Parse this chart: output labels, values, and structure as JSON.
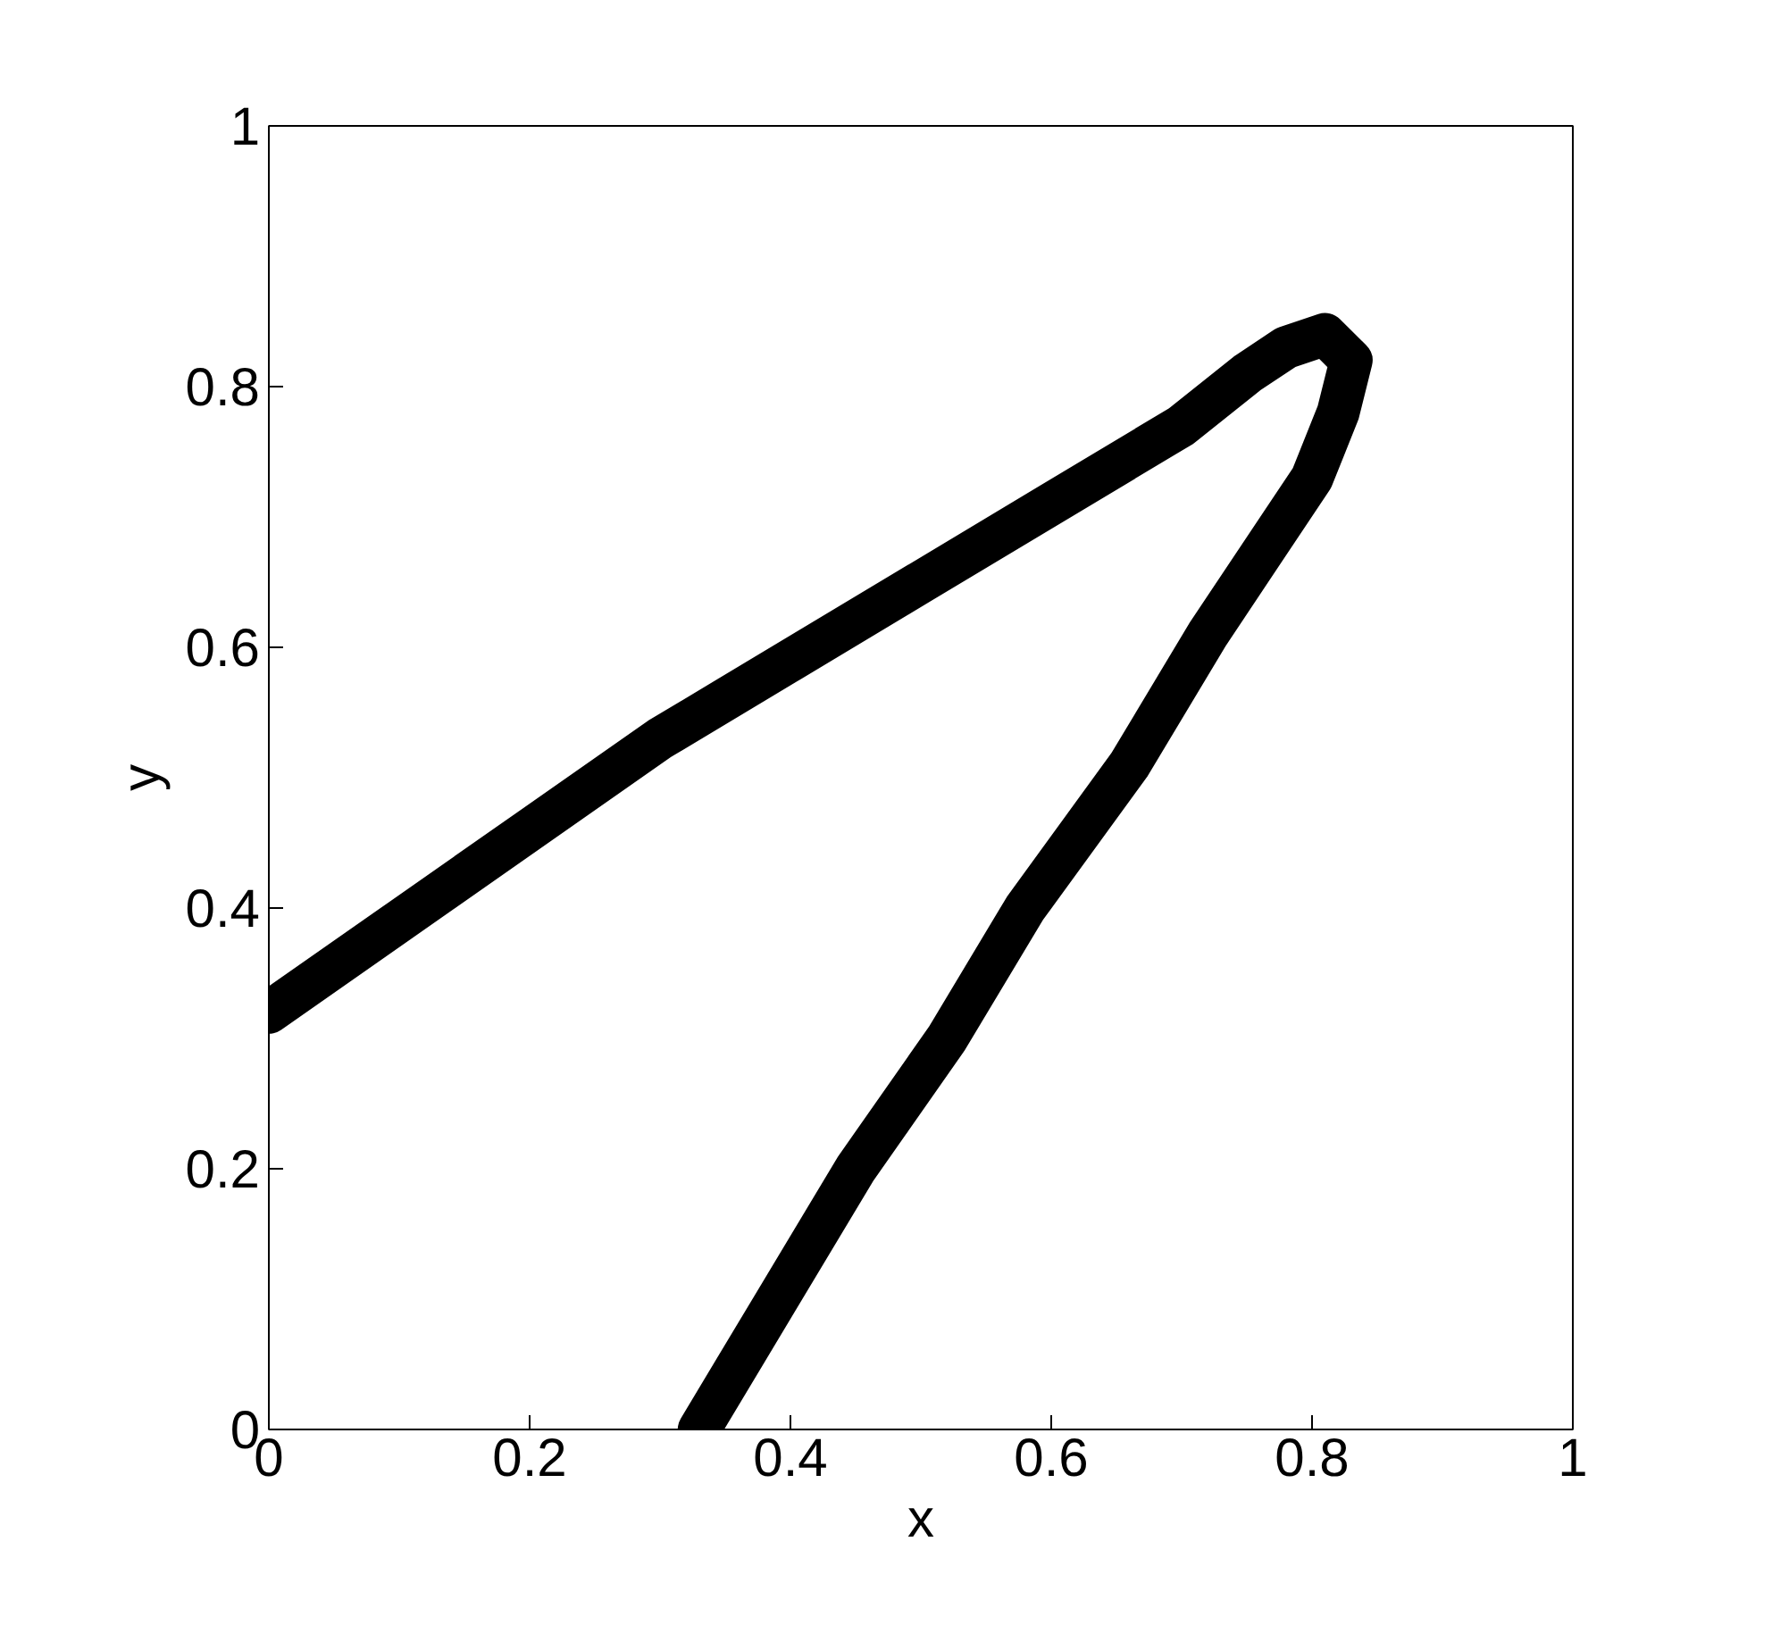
{
  "chart_data": {
    "type": "line",
    "xlabel": "x",
    "ylabel": "y",
    "x": [
      0,
      0.1,
      0.2,
      0.3,
      0.4,
      0.5,
      0.6,
      0.7,
      0.75,
      0.78,
      0.81,
      0.83,
      0.82,
      0.8,
      0.76,
      0.72,
      0.66,
      0.58,
      0.52,
      0.45,
      0.39,
      0.33
    ],
    "series": [
      {
        "color": "#000000",
        "values": [
          0.32,
          0.39,
          0.46,
          0.53,
          0.59,
          0.65,
          0.71,
          0.77,
          0.81,
          0.83,
          0.84,
          0.82,
          0.78,
          0.73,
          0.67,
          0.61,
          0.51,
          0.4,
          0.3,
          0.2,
          0.1,
          0.0
        ]
      }
    ],
    "xlim": [
      0,
      1
    ],
    "ylim": [
      0,
      1
    ],
    "xticks": [
      0,
      0.2,
      0.4,
      0.6,
      0.8,
      1
    ],
    "yticks": [
      0,
      0.2,
      0.4,
      0.6,
      0.8,
      1
    ],
    "grid": false,
    "line_style": "solid"
  }
}
